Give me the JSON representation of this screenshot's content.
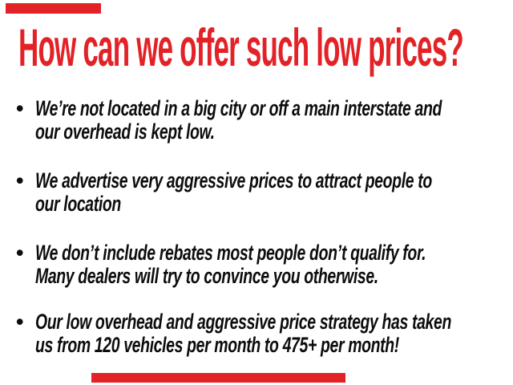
{
  "colors": {
    "accent_red": "#e32227",
    "text_black": "#0d0d0d"
  },
  "heading": {
    "text": "How can we offer such low prices?"
  },
  "list": {
    "bullet_glyph": "•",
    "items": [
      {
        "lines": [
          "We’re not located in a big city or off a main interstate and",
          "our overhead is kept low."
        ]
      },
      {
        "lines": [
          "We advertise very aggressive prices to attract people to",
          "our location"
        ]
      },
      {
        "lines": [
          "We don’t include rebates most people don’t qualify for.",
          "Many dealers will try to convince you otherwise."
        ]
      },
      {
        "lines": [
          "Our low overhead and aggressive price strategy has taken",
          "us from 120 vehicles per month to 475+ per month!"
        ]
      }
    ]
  }
}
